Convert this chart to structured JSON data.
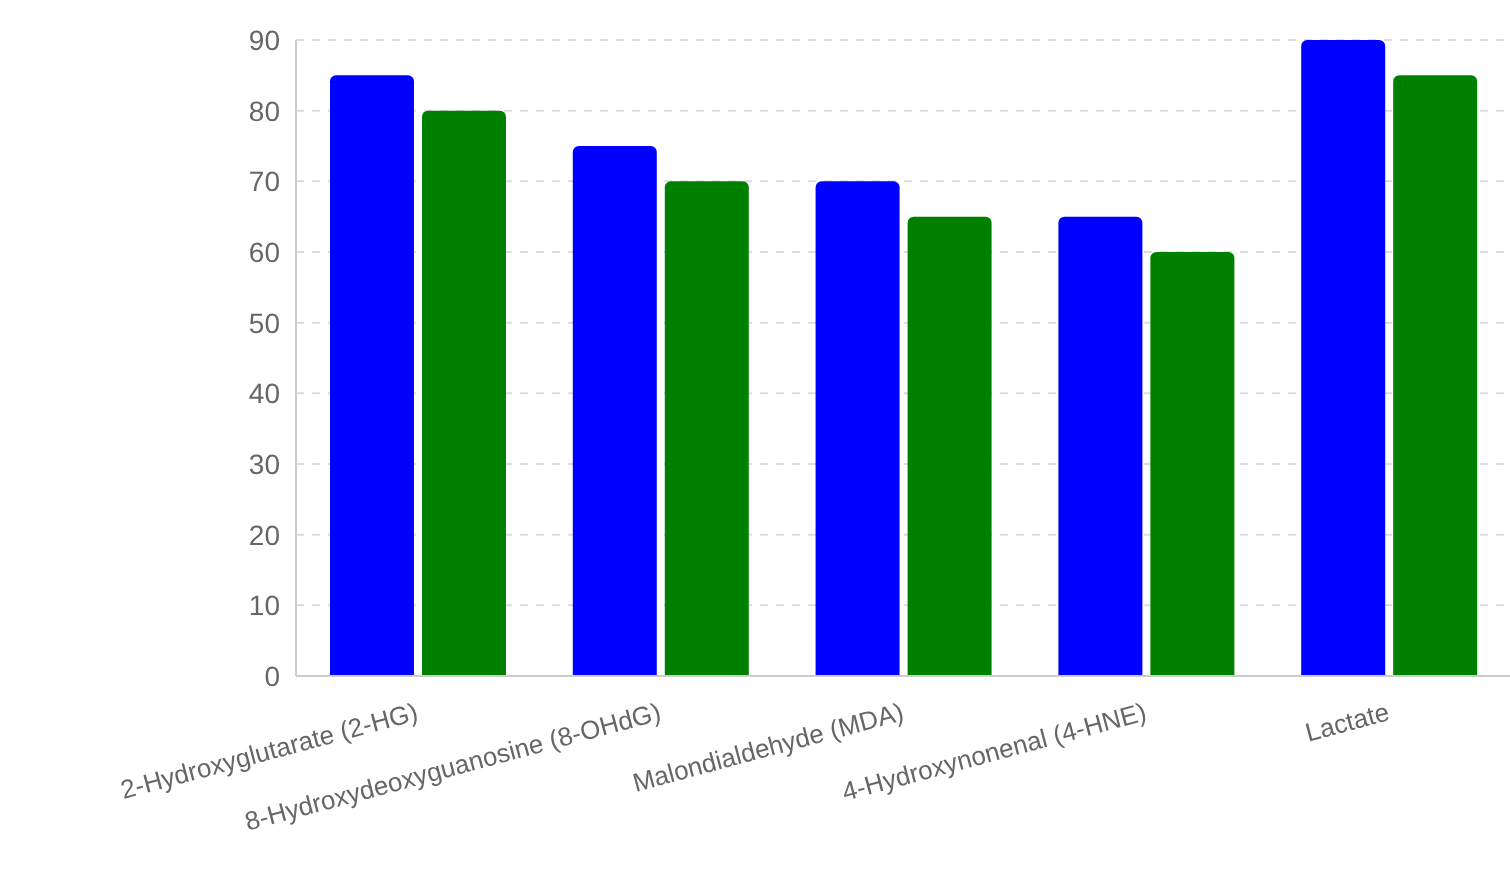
{
  "chart_data": {
    "type": "bar",
    "categories": [
      "2-Hydroxyglutarate (2-HG)",
      "8-Hydroxydeoxyguanosine (8-OHdG)",
      "Malondialdehyde (MDA)",
      "4-Hydroxynonenal (4-HNE)",
      "Lactate"
    ],
    "series": [
      {
        "color": "#0000ff",
        "values": [
          85,
          75,
          70,
          65,
          90
        ]
      },
      {
        "color": "#008000",
        "values": [
          80,
          70,
          65,
          60,
          85
        ]
      }
    ],
    "ylim": [
      0,
      90
    ],
    "yticks": [
      0,
      10,
      20,
      30,
      40,
      50,
      60,
      70,
      80,
      90
    ],
    "grid": "y"
  }
}
